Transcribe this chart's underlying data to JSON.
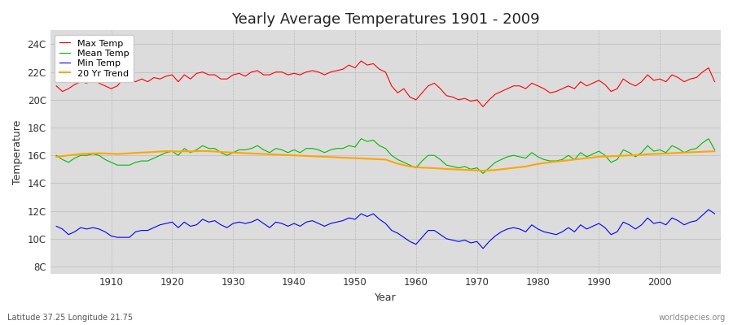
{
  "title": "Yearly Average Temperatures 1901 - 2009",
  "xlabel": "Year",
  "ylabel": "Temperature",
  "subtitle": "Latitude 37.25 Longitude 21.75",
  "watermark": "worldspecies.org",
  "start_year": 1901,
  "end_year": 2009,
  "legend_labels": [
    "Max Temp",
    "Mean Temp",
    "Min Temp",
    "20 Yr Trend"
  ],
  "legend_colors": [
    "#ff0000",
    "#00bb00",
    "#0000ff",
    "#ffa500"
  ],
  "bg_color": "#ffffff",
  "plot_bg_color": "#dcdcdc",
  "yticks": [
    8,
    10,
    12,
    14,
    16,
    18,
    20,
    22,
    24
  ],
  "ylim": [
    7.5,
    25.0
  ],
  "xlim": [
    1900,
    2010
  ],
  "max_temps": [
    21.0,
    20.6,
    20.8,
    21.1,
    21.3,
    21.2,
    21.5,
    21.2,
    21.0,
    20.8,
    21.0,
    21.5,
    21.4,
    21.3,
    21.5,
    21.3,
    21.6,
    21.5,
    21.7,
    21.8,
    21.3,
    21.8,
    21.5,
    21.9,
    22.0,
    21.8,
    21.8,
    21.5,
    21.5,
    21.8,
    21.9,
    21.7,
    22.0,
    22.1,
    21.8,
    21.8,
    22.0,
    22.0,
    21.8,
    21.9,
    21.8,
    22.0,
    22.1,
    22.0,
    21.8,
    22.0,
    22.1,
    22.2,
    22.5,
    22.3,
    22.8,
    22.5,
    22.6,
    22.2,
    22.0,
    21.0,
    20.5,
    20.8,
    20.2,
    20.0,
    20.5,
    21.0,
    21.2,
    20.8,
    20.3,
    20.2,
    20.0,
    20.1,
    19.9,
    20.0,
    19.5,
    20.0,
    20.4,
    20.6,
    20.8,
    21.0,
    21.0,
    20.8,
    21.2,
    21.0,
    20.8,
    20.5,
    20.6,
    20.8,
    21.0,
    20.8,
    21.3,
    21.0,
    21.2,
    21.4,
    21.1,
    20.6,
    20.8,
    21.5,
    21.2,
    21.0,
    21.3,
    21.8,
    21.4,
    21.5,
    21.3,
    21.8,
    21.6,
    21.3,
    21.5,
    21.6,
    22.0,
    22.3,
    21.3
  ],
  "mean_temps": [
    16.0,
    15.7,
    15.5,
    15.8,
    16.0,
    16.0,
    16.1,
    16.0,
    15.7,
    15.5,
    15.3,
    15.3,
    15.3,
    15.5,
    15.6,
    15.6,
    15.8,
    16.0,
    16.2,
    16.3,
    16.0,
    16.5,
    16.2,
    16.4,
    16.7,
    16.5,
    16.5,
    16.2,
    16.0,
    16.2,
    16.4,
    16.4,
    16.5,
    16.7,
    16.4,
    16.2,
    16.5,
    16.4,
    16.2,
    16.4,
    16.2,
    16.5,
    16.5,
    16.4,
    16.2,
    16.4,
    16.5,
    16.5,
    16.7,
    16.6,
    17.2,
    17.0,
    17.1,
    16.7,
    16.5,
    16.0,
    15.7,
    15.5,
    15.3,
    15.1,
    15.6,
    16.0,
    16.0,
    15.7,
    15.3,
    15.2,
    15.1,
    15.2,
    15.0,
    15.1,
    14.7,
    15.1,
    15.5,
    15.7,
    15.9,
    16.0,
    15.9,
    15.8,
    16.2,
    15.9,
    15.7,
    15.6,
    15.6,
    15.7,
    16.0,
    15.7,
    16.2,
    15.9,
    16.1,
    16.3,
    16.0,
    15.5,
    15.7,
    16.4,
    16.2,
    15.9,
    16.2,
    16.7,
    16.3,
    16.4,
    16.2,
    16.7,
    16.5,
    16.2,
    16.4,
    16.5,
    16.9,
    17.2,
    16.4
  ],
  "min_temps": [
    10.9,
    10.7,
    10.3,
    10.5,
    10.8,
    10.7,
    10.8,
    10.7,
    10.5,
    10.2,
    10.1,
    10.1,
    10.1,
    10.5,
    10.6,
    10.6,
    10.8,
    11.0,
    11.1,
    11.2,
    10.8,
    11.2,
    10.9,
    11.0,
    11.4,
    11.2,
    11.3,
    11.0,
    10.8,
    11.1,
    11.2,
    11.1,
    11.2,
    11.4,
    11.1,
    10.8,
    11.2,
    11.1,
    10.9,
    11.1,
    10.9,
    11.2,
    11.3,
    11.1,
    10.9,
    11.1,
    11.2,
    11.3,
    11.5,
    11.4,
    11.8,
    11.6,
    11.8,
    11.4,
    11.1,
    10.6,
    10.4,
    10.1,
    9.8,
    9.6,
    10.1,
    10.6,
    10.6,
    10.3,
    10.0,
    9.9,
    9.8,
    9.9,
    9.7,
    9.8,
    9.3,
    9.8,
    10.2,
    10.5,
    10.7,
    10.8,
    10.7,
    10.5,
    11.0,
    10.7,
    10.5,
    10.4,
    10.3,
    10.5,
    10.8,
    10.5,
    11.0,
    10.7,
    10.9,
    11.1,
    10.8,
    10.3,
    10.5,
    11.2,
    11.0,
    10.7,
    11.0,
    11.5,
    11.1,
    11.2,
    11.0,
    11.5,
    11.3,
    11.0,
    11.2,
    11.3,
    11.7,
    12.1,
    11.8
  ],
  "trend_start_year": 1901,
  "trend_values": [
    15.9,
    15.95,
    16.0,
    16.05,
    16.1,
    16.12,
    16.14,
    16.15,
    16.14,
    16.12,
    16.1,
    16.12,
    16.15,
    16.18,
    16.2,
    16.22,
    16.25,
    16.28,
    16.3,
    16.3,
    16.28,
    16.3,
    16.28,
    16.3,
    16.32,
    16.3,
    16.28,
    16.25,
    16.22,
    16.2,
    16.18,
    16.16,
    16.14,
    16.12,
    16.1,
    16.08,
    16.06,
    16.04,
    16.02,
    16.0,
    15.98,
    15.96,
    15.94,
    15.92,
    15.9,
    15.88,
    15.86,
    15.84,
    15.82,
    15.8,
    15.78,
    15.76,
    15.74,
    15.72,
    15.7,
    15.55,
    15.4,
    15.3,
    15.2,
    15.15,
    15.12,
    15.1,
    15.08,
    15.05,
    15.02,
    15.0,
    14.98,
    14.96,
    14.94,
    14.92,
    14.9,
    14.92,
    14.95,
    15.0,
    15.05,
    15.1,
    15.15,
    15.2,
    15.3,
    15.38,
    15.45,
    15.5,
    15.55,
    15.6,
    15.65,
    15.7,
    15.75,
    15.8,
    15.85,
    15.9,
    15.92,
    15.94,
    15.96,
    15.98,
    16.0,
    16.02,
    16.05,
    16.08,
    16.1,
    16.12,
    16.14,
    16.16,
    16.18,
    16.2,
    16.22,
    16.24,
    16.26,
    16.28,
    16.3
  ]
}
